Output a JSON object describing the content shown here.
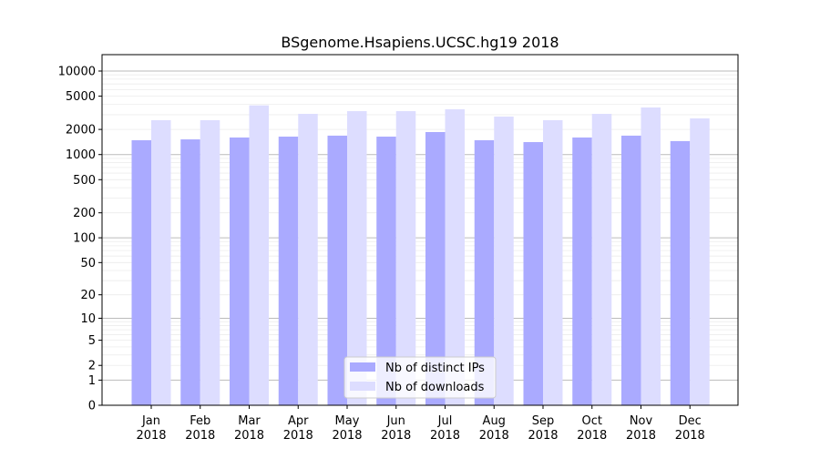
{
  "chart_data": {
    "type": "bar",
    "title": "BSgenome.Hsapiens.UCSC.hg19 2018",
    "xlabel": "",
    "ylabel": "",
    "yscale": "log10(1+y)",
    "ylim": [
      0,
      13000
    ],
    "yticks": [
      0,
      1,
      2,
      5,
      10,
      20,
      50,
      100,
      200,
      500,
      1000,
      2000,
      5000,
      10000
    ],
    "grid": true,
    "legend_position": "bottom-center",
    "categories": [
      "Jan\n2018",
      "Feb\n2018",
      "Mar\n2018",
      "Apr\n2018",
      "May\n2018",
      "Jun\n2018",
      "Jul\n2018",
      "Aug\n2018",
      "Sep\n2018",
      "Oct\n2018",
      "Nov\n2018",
      "Dec\n2018"
    ],
    "series": [
      {
        "name": "Nb of distinct IPs",
        "color": "#aaaaff",
        "values": [
          1485,
          1520,
          1600,
          1640,
          1685,
          1640,
          1860,
          1485,
          1410,
          1600,
          1685,
          1450
        ]
      },
      {
        "name": "Nb of downloads",
        "color": "#ddddff",
        "values": [
          2580,
          2580,
          3880,
          3070,
          3310,
          3310,
          3485,
          2850,
          2580,
          3070,
          3660,
          2710
        ]
      }
    ]
  }
}
